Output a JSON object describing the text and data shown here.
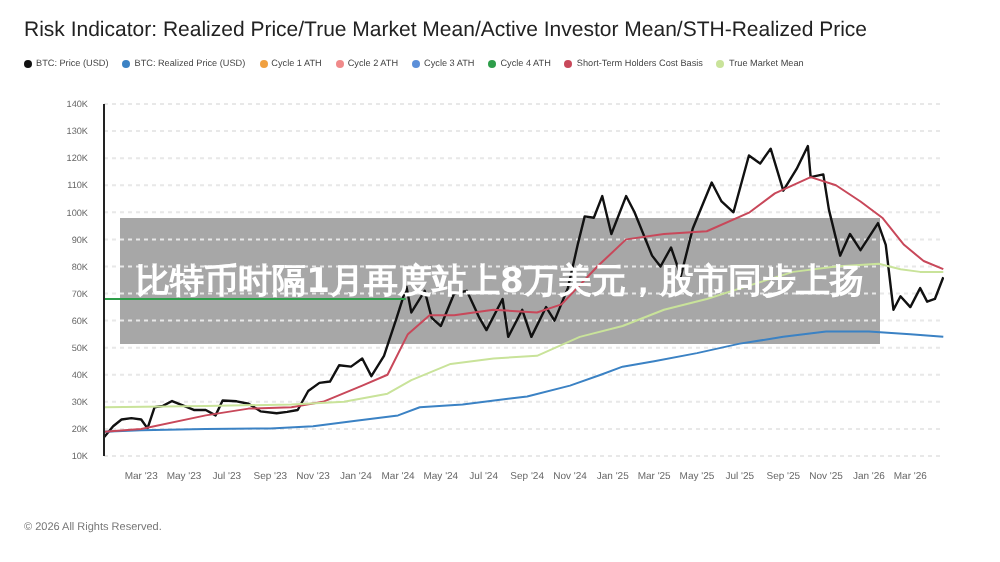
{
  "chart_data": {
    "type": "line",
    "title": "Risk Indicator: Realized Price/True Market Mean/Active Investor Mean/STH-Realized Price",
    "annotations": [
      "比特币时隔1月再度站上8万美元，股市同步上扬",
      "© 2026 All Rights Reserved."
    ],
    "series": [
      {
        "name": "BTC: Price (USD)",
        "color": "#111111",
        "x": [
          "2023-01-07",
          "2023-01-20",
          "2023-02-01",
          "2023-02-15",
          "2023-03-01",
          "2023-03-10",
          "2023-03-20",
          "2023-04-01",
          "2023-04-14",
          "2023-05-01",
          "2023-05-15",
          "2023-06-01",
          "2023-06-15",
          "2023-06-25",
          "2023-07-15",
          "2023-08-01",
          "2023-08-18",
          "2023-09-10",
          "2023-09-25",
          "2023-10-10",
          "2023-10-25",
          "2023-11-10",
          "2023-11-25",
          "2023-12-08",
          "2023-12-25",
          "2024-01-10",
          "2024-01-23",
          "2024-02-10",
          "2024-02-28",
          "2024-03-13",
          "2024-03-20",
          "2024-04-08",
          "2024-04-18",
          "2024-05-01",
          "2024-05-20",
          "2024-06-07",
          "2024-06-25",
          "2024-07-05",
          "2024-07-28",
          "2024-08-05",
          "2024-08-25",
          "2024-09-07",
          "2024-09-28",
          "2024-10-10",
          "2024-10-29",
          "2024-11-12",
          "2024-11-22",
          "2024-12-05",
          "2024-12-17",
          "2024-12-30",
          "2025-01-20",
          "2025-02-01",
          "2025-02-26",
          "2025-03-10",
          "2025-03-25",
          "2025-04-08",
          "2025-04-25",
          "2025-05-22",
          "2025-06-05",
          "2025-06-22",
          "2025-07-14",
          "2025-07-30",
          "2025-08-14",
          "2025-09-01",
          "2025-09-20",
          "2025-10-06",
          "2025-10-10",
          "2025-10-28",
          "2025-11-05",
          "2025-11-21",
          "2025-12-05",
          "2025-12-20",
          "2026-01-14",
          "2026-01-25",
          "2026-02-05",
          "2026-02-15",
          "2026-03-01",
          "2026-03-15",
          "2026-03-25",
          "2026-04-05",
          "2026-04-17"
        ],
        "values": [
          16.9,
          21,
          23.5,
          24,
          23.5,
          20.2,
          28,
          28.5,
          30.3,
          28.5,
          27,
          27,
          25,
          30.5,
          30.2,
          29.3,
          26.5,
          25.8,
          26.3,
          27,
          34,
          37,
          37.5,
          43.5,
          43,
          46,
          39.5,
          47,
          61,
          72.5,
          63,
          71,
          61,
          58,
          70,
          71,
          61,
          56.5,
          68,
          54,
          64,
          54,
          65,
          60,
          72,
          88,
          98.5,
          98,
          106,
          92,
          106,
          100,
          84,
          80,
          87,
          76.5,
          94,
          111,
          104,
          100,
          121,
          118,
          123.5,
          108,
          116,
          124.5,
          113,
          114,
          101,
          84,
          92,
          86,
          96,
          88,
          64,
          69,
          65,
          72,
          67,
          68,
          76
        ]
      },
      {
        "name": "BTC: Realized Price (USD)",
        "color": "#3b82c4",
        "x": [
          "2023-01-07",
          "2023-03-01",
          "2023-06-01",
          "2023-09-01",
          "2023-11-01",
          "2024-01-01",
          "2024-03-01",
          "2024-04-01",
          "2024-06-01",
          "2024-09-01",
          "2024-11-01",
          "2024-12-15",
          "2025-01-15",
          "2025-03-01",
          "2025-05-01",
          "2025-07-01",
          "2025-09-01",
          "2025-11-01",
          "2026-01-01",
          "2026-03-01",
          "2026-04-17"
        ],
        "values": [
          19,
          19.5,
          20,
          20.2,
          21,
          23,
          25,
          28,
          29,
          32,
          36,
          40,
          43,
          45,
          48,
          51.5,
          54,
          56,
          56,
          55,
          54
        ]
      },
      {
        "name": "Cycle 1 ATH",
        "color": "#f0a040"
      },
      {
        "name": "Cycle 2 ATH",
        "color": "#f08a8a"
      },
      {
        "name": "Cycle 3 ATH",
        "color": "#5b8fd9"
      },
      {
        "name": "Cycle 4 ATH",
        "color": "#2e9e4a",
        "x": [
          "2023-01-07",
          "2024-03-12"
        ],
        "values": [
          68,
          68
        ]
      },
      {
        "name": "Short-Term Holders Cost Basis",
        "color": "#c8485a",
        "x": [
          "2023-01-07",
          "2023-03-01",
          "2023-06-01",
          "2023-08-01",
          "2023-10-01",
          "2023-11-15",
          "2024-01-10",
          "2024-02-15",
          "2024-03-15",
          "2024-04-15",
          "2024-05-20",
          "2024-07-15",
          "2024-09-15",
          "2024-10-20",
          "2024-12-10",
          "2025-01-20",
          "2025-03-15",
          "2025-05-15",
          "2025-07-15",
          "2025-08-20",
          "2025-10-10",
          "2025-11-15",
          "2025-12-20",
          "2026-01-20",
          "2026-02-20",
          "2026-03-20",
          "2026-04-17"
        ],
        "values": [
          19,
          20,
          25,
          27.5,
          28,
          30,
          36,
          40,
          55,
          62,
          62,
          64,
          63,
          66,
          80,
          90,
          92,
          93,
          100,
          107,
          113,
          110,
          104,
          98,
          88,
          82,
          79
        ]
      },
      {
        "name": "True Market Mean",
        "color": "#c9e39a",
        "x": [
          "2023-01-07",
          "2023-06-01",
          "2023-10-01",
          "2023-12-15",
          "2024-02-15",
          "2024-03-20",
          "2024-05-15",
          "2024-07-15",
          "2024-09-15",
          "2024-11-15",
          "2025-01-15",
          "2025-03-15",
          "2025-05-15",
          "2025-07-15",
          "2025-09-15",
          "2025-11-15",
          "2026-01-15",
          "2026-02-15",
          "2026-03-15",
          "2026-04-17"
        ],
        "values": [
          28,
          28.5,
          29,
          30,
          33,
          38,
          44,
          46,
          47,
          54,
          58,
          64,
          68,
          73,
          78,
          80,
          81,
          79,
          78,
          78
        ]
      }
    ],
    "xlim": [
      "2023-01-07",
      "2026-04-18"
    ],
    "xticks": [
      {
        "value": "2023-03-01",
        "label": "Mar '23"
      },
      {
        "value": "2023-05-01",
        "label": "May '23"
      },
      {
        "value": "2023-07-01",
        "label": "Jul '23"
      },
      {
        "value": "2023-09-01",
        "label": "Sep '23"
      },
      {
        "value": "2023-11-01",
        "label": "Nov '23"
      },
      {
        "value": "2024-01-01",
        "label": "Jan '24"
      },
      {
        "value": "2024-03-01",
        "label": "Mar '24"
      },
      {
        "value": "2024-05-01",
        "label": "May '24"
      },
      {
        "value": "2024-07-01",
        "label": "Jul '24"
      },
      {
        "value": "2024-09-01",
        "label": "Sep '24"
      },
      {
        "value": "2024-11-01",
        "label": "Nov '24"
      },
      {
        "value": "2025-01-01",
        "label": "Jan '25"
      },
      {
        "value": "2025-03-01",
        "label": "Mar '25"
      },
      {
        "value": "2025-05-01",
        "label": "May '25"
      },
      {
        "value": "2025-07-01",
        "label": "Jul '25"
      },
      {
        "value": "2025-09-01",
        "label": "Sep '25"
      },
      {
        "value": "2025-11-01",
        "label": "Nov '25"
      },
      {
        "value": "2026-01-01",
        "label": "Jan '26"
      },
      {
        "value": "2026-03-01",
        "label": "Mar '26"
      }
    ],
    "ylim": [
      10,
      140
    ],
    "yticks": [
      {
        "value": 10,
        "label": "10K"
      },
      {
        "value": 20,
        "label": "20K"
      },
      {
        "value": 30,
        "label": "30K"
      },
      {
        "value": 40,
        "label": "40K"
      },
      {
        "value": 50,
        "label": "50K"
      },
      {
        "value": 60,
        "label": "60K"
      },
      {
        "value": 70,
        "label": "70K"
      },
      {
        "value": 80,
        "label": "80K"
      },
      {
        "value": 90,
        "label": "90K"
      },
      {
        "value": 100,
        "label": "100K"
      },
      {
        "value": 110,
        "label": "110K"
      },
      {
        "value": 120,
        "label": "120K"
      },
      {
        "value": 130,
        "label": "130K"
      },
      {
        "value": 140,
        "label": "140K"
      }
    ],
    "grid": "y",
    "legend": "top",
    "marker": "none",
    "line_style": "solid"
  }
}
